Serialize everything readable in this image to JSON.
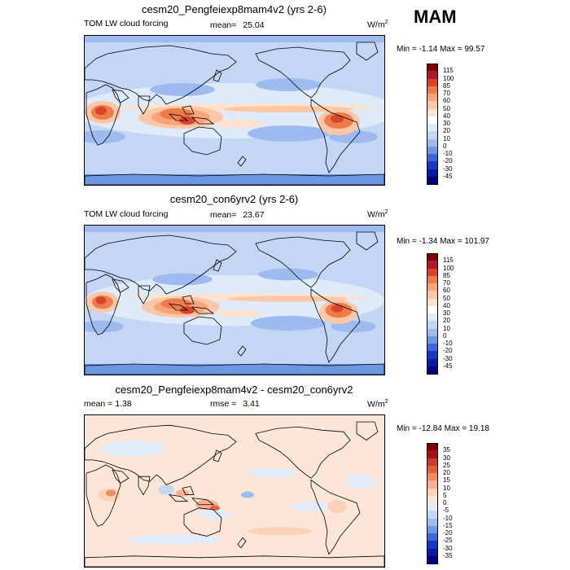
{
  "season": "MAM",
  "panels": [
    {
      "title": "cesm20_Pengfeiexp8mam4v2 (yrs 2-6)",
      "left_text": "TOM LW cloud forcing",
      "center_label": "mean=",
      "center_value": "25.04",
      "units_base": "W/m",
      "units_sup": "2",
      "minmax": "Min =  -1.14 Max =  99.57",
      "colorbar_labels": [
        "115",
        "100",
        "85",
        "70",
        "60",
        "50",
        "40",
        "30",
        "20",
        "10",
        "0",
        "-10",
        "-20",
        "-30",
        "-45"
      ],
      "map_style": "abs1"
    },
    {
      "title": "cesm20_con6yrv2 (yrs 2-6)",
      "left_text": "TOM LW cloud forcing",
      "center_label": "mean=",
      "center_value": "23.67",
      "units_base": "W/m",
      "units_sup": "2",
      "minmax": "Min =  -1.34 Max = 101.97",
      "colorbar_labels": [
        "115",
        "100",
        "85",
        "70",
        "60",
        "50",
        "40",
        "30",
        "20",
        "10",
        "0",
        "-10",
        "-20",
        "-30",
        "-45"
      ],
      "map_style": "abs2"
    },
    {
      "title": "cesm20_Pengfeiexp8mam4v2 - cesm20_con6yrv2",
      "left_text": "mean =   1.38",
      "center_label": "rmse =",
      "center_value": "3.41",
      "units_base": "W/m",
      "units_sup": "2",
      "minmax": "Min = -12.84 Max =  19.18",
      "colorbar_labels": [
        "35",
        "30",
        "25",
        "20",
        "15",
        "10",
        "5",
        "0",
        "-5",
        "-10",
        "-15",
        "-20",
        "-25",
        "-30",
        "-35"
      ],
      "map_style": "diff"
    }
  ],
  "colors": {
    "abs_scale": [
      "#7f0000",
      "#b2182b",
      "#d6452b",
      "#ef7a4a",
      "#f7a47a",
      "#fbc7a6",
      "#fde3d0",
      "#ffffff",
      "#dfeafb",
      "#c3d6f5",
      "#9dbbef",
      "#6e97e3",
      "#3a67d9",
      "#1538c6",
      "#0a1a9a",
      "#000080"
    ],
    "diff_scale": [
      "#7f0000",
      "#a50f15",
      "#c83a2c",
      "#e06040",
      "#f08a60",
      "#f8b090",
      "#fcd2b8",
      "#fde6d8",
      "#e2ecfb",
      "#c4d8f5",
      "#9bbcee",
      "#6d98e2",
      "#3c68d8",
      "#1638c4",
      "#0a1a98",
      "#000080"
    ]
  }
}
